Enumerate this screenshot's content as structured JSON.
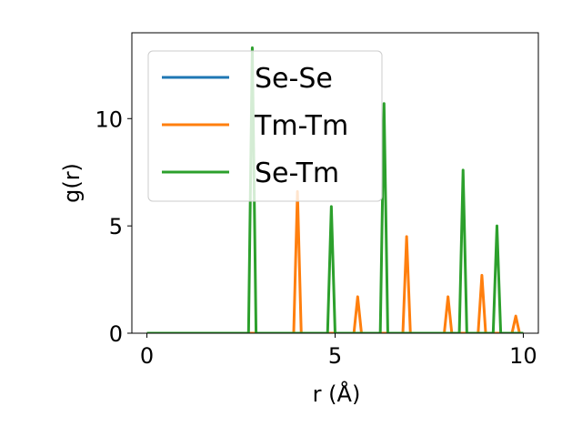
{
  "chart_data": {
    "type": "line",
    "title": "",
    "xlabel": "r (Å)",
    "ylabel": "g(r)",
    "xlim": [
      -0.4,
      10.4
    ],
    "ylim": [
      0,
      14
    ],
    "xticks": [
      0,
      5,
      10
    ],
    "xtick_labels": [
      "0",
      "5",
      "10"
    ],
    "yticks": [
      0,
      5,
      10
    ],
    "ytick_labels": [
      "0",
      "5",
      "10"
    ],
    "grid": false,
    "legend_position": "top-left",
    "series": [
      {
        "name": "Se-Se",
        "color": "#1f77b4",
        "x": [
          0,
          2.7,
          2.9,
          3.0,
          10.0
        ],
        "y": [
          0,
          0,
          0,
          0,
          0
        ]
      },
      {
        "name": "Tm-Tm",
        "color": "#ff7f0e",
        "x": [
          0,
          3.9,
          4.0,
          4.1,
          5.5,
          5.6,
          5.7,
          6.8,
          6.9,
          7.0,
          7.9,
          8.0,
          8.1,
          8.8,
          8.9,
          9.0,
          9.7,
          9.8,
          9.9,
          10.0
        ],
        "y": [
          0,
          0,
          6.6,
          0,
          0,
          1.7,
          0,
          0,
          4.5,
          0,
          0,
          1.7,
          0,
          0,
          2.7,
          0,
          0,
          0.8,
          0,
          0
        ]
      },
      {
        "name": "Se-Tm",
        "color": "#2ca02c",
        "x": [
          0,
          2.7,
          2.8,
          2.9,
          4.8,
          4.9,
          5.0,
          6.2,
          6.3,
          6.4,
          8.3,
          8.4,
          8.5,
          9.2,
          9.3,
          9.4,
          10.0
        ],
        "y": [
          0,
          0,
          13.3,
          0,
          0,
          5.9,
          0,
          0,
          10.7,
          0,
          0,
          7.6,
          0,
          0,
          5.0,
          0,
          0
        ]
      }
    ]
  }
}
